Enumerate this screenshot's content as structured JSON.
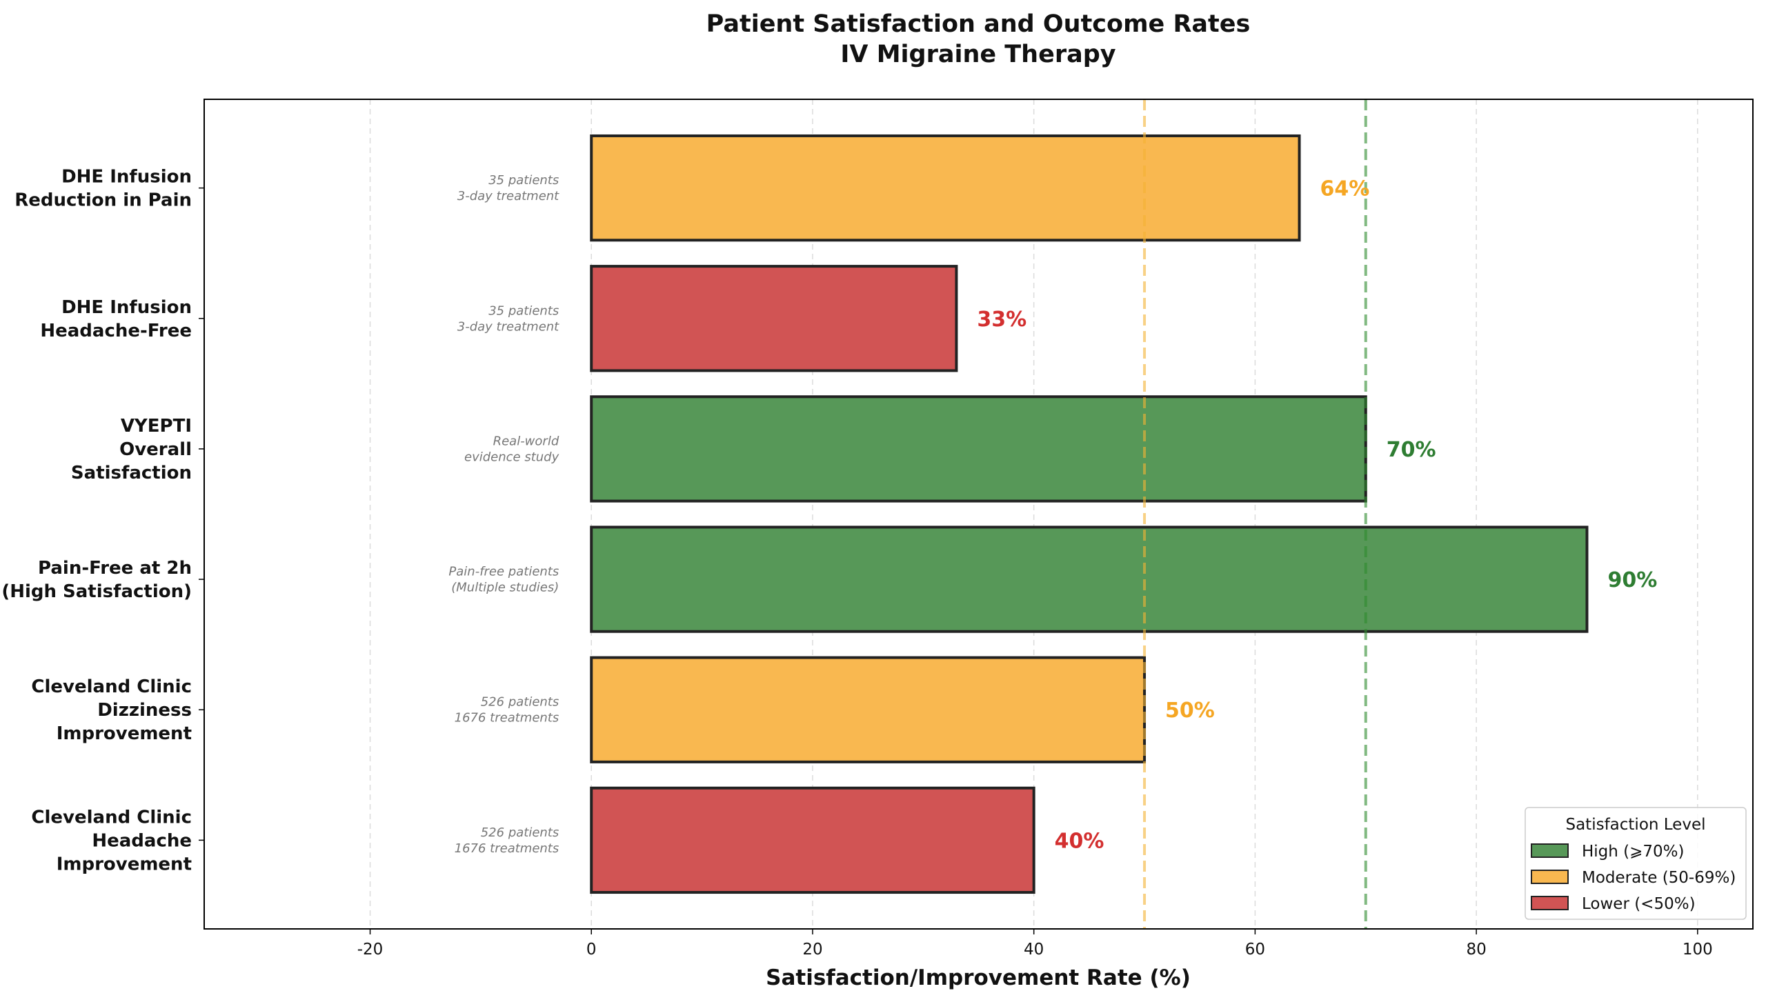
{
  "chart_data": {
    "type": "bar",
    "orientation": "horizontal",
    "title": "Patient Satisfaction and Outcome Rates\nIV Migraine Therapy",
    "xlabel": "Satisfaction/Improvement Rate (%)",
    "ylabel": "",
    "xlim": [
      -35,
      105
    ],
    "xticks": [
      -20,
      0,
      20,
      40,
      60,
      80,
      100
    ],
    "grid": "x, dashed",
    "categories": [
      "DHE Infusion\nReduction in Pain",
      "DHE Infusion\nHeadache-Free",
      "VYEPTI\nOverall\nSatisfaction",
      "Pain-Free at 2h\n(High Satisfaction)",
      "Cleveland Clinic\nDizziness\nImprovement",
      "Cleveland Clinic\nHeadache\nImprovement"
    ],
    "values": [
      64,
      33,
      70,
      90,
      50,
      40
    ],
    "value_labels": [
      "64%",
      "33%",
      "70%",
      "90%",
      "50%",
      "40%"
    ],
    "levels": [
      "moderate",
      "lower",
      "high",
      "high",
      "moderate",
      "lower"
    ],
    "annotations": [
      "35 patients\n3-day treatment",
      "35 patients\n3-day treatment",
      "Real-world\nevidence study",
      "Pain-free patients\n(Multiple studies)",
      "526 patients\n1676 treatments",
      "526 patients\n1676 treatments"
    ],
    "reference_lines": [
      {
        "x": 50,
        "color": "#f5b335",
        "style": "dashed"
      },
      {
        "x": 70,
        "color": "#2e8b2e",
        "style": "dashed"
      }
    ],
    "colors": {
      "high": {
        "fill": "#579858",
        "text": "#2e7d32"
      },
      "moderate": {
        "fill": "#f9b850",
        "text": "#f5a623"
      },
      "lower": {
        "fill": "#d15454",
        "text": "#d32f2f"
      }
    },
    "legend": {
      "title": "Satisfaction Level",
      "placement": "lower-right",
      "entries": [
        {
          "level": "high",
          "label": "High (⩾70%)"
        },
        {
          "level": "moderate",
          "label": "Moderate (50-69%)"
        },
        {
          "level": "lower",
          "label": "Lower (<50%)"
        }
      ]
    }
  }
}
